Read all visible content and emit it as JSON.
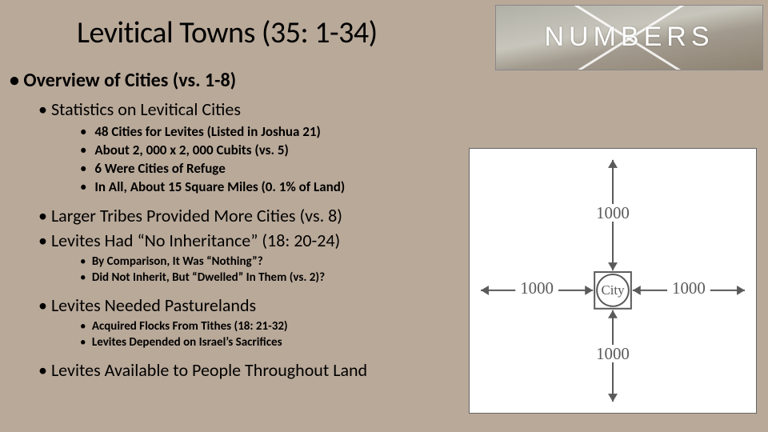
{
  "title": "Levitical Towns (35: 1-34)",
  "header_image": {
    "label": "NUMBERS"
  },
  "bullets": {
    "l1_overview": "Overview of Cities (vs. 1-8)",
    "l2_stats": "Statistics on Levitical Cities",
    "l3_stats": [
      "48 Cities for Levites (Listed in Joshua 21)",
      "About 2, 000 x 2, 000 Cubits (vs. 5)",
      "6 Were Cities of Refuge",
      "In All, About 15 Square Miles (0. 1% of Land)"
    ],
    "l2_larger": "Larger Tribes Provided More Cities (vs. 8)",
    "l2_noinherit": "Levites Had “No Inheritance” (18: 20-24)",
    "l3_noinherit": [
      "By Comparison, It Was “Nothing”?",
      "Did Not Inherit, But “Dwelled” In Them (vs. 2)?"
    ],
    "l2_pasture": "Levites Needed Pasturelands",
    "l3_pasture": [
      "Acquired Flocks From Tithes (18: 21-32)",
      "Levites Depended on Israel’s Sacrifices"
    ],
    "l2_available": "Levites Available to People Throughout Land"
  },
  "diagram": {
    "type": "diagram",
    "center_label": "City",
    "arm_label": "1000",
    "stroke": "#5a5a5a",
    "stroke_width": 2,
    "box_size": 46,
    "circle_r": 20,
    "arrow_head": 10,
    "background": "#ffffff",
    "text_color": "#5a5a5a",
    "font_family": "Georgia, serif",
    "label_fontsize": 21,
    "city_fontsize": 17
  }
}
